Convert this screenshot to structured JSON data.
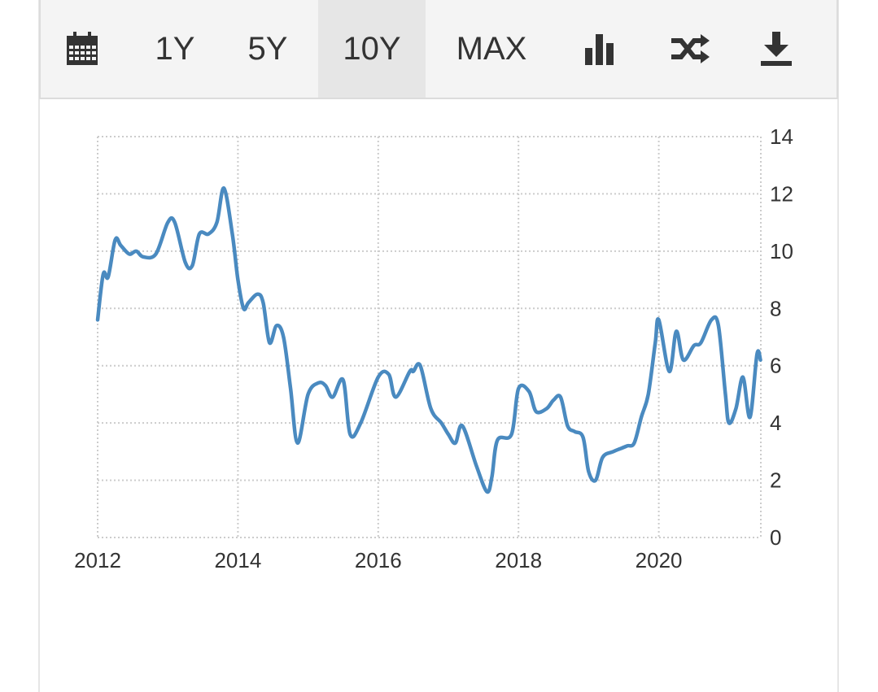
{
  "toolbar": {
    "calendar_icon": "calendar-icon",
    "range_1y": "1Y",
    "range_5y": "5Y",
    "range_10y": "10Y",
    "range_max": "MAX",
    "active_range": "10Y",
    "chart_type_icon": "bar-chart-icon",
    "compare_icon": "shuffle-icon",
    "download_icon": "download-icon"
  },
  "colors": {
    "line": "#4a8ac0",
    "grid": "#cccccc",
    "toolbar_bg": "#f4f4f4",
    "active_bg": "#e6e6e6",
    "text": "#333333"
  },
  "chart_data": {
    "type": "line",
    "title": "",
    "xlabel": "",
    "ylabel": "",
    "x_ticks": [
      "2012",
      "2014",
      "2016",
      "2018",
      "2020"
    ],
    "y_ticks": [
      "0",
      "2",
      "4",
      "6",
      "8",
      "10",
      "12",
      "14"
    ],
    "xlim": [
      2012,
      2021.5
    ],
    "ylim": [
      0,
      14
    ],
    "grid": true,
    "y_axis_side": "right",
    "series": [
      {
        "x": [
          2012.0,
          2012.08,
          2012.15,
          2012.25,
          2012.33,
          2012.45,
          2012.55,
          2012.65,
          2012.83,
          2013.0,
          2013.1,
          2013.25,
          2013.35,
          2013.45,
          2013.58,
          2013.7,
          2013.8,
          2013.92,
          2014.0,
          2014.08,
          2014.15,
          2014.28,
          2014.36,
          2014.45,
          2014.55,
          2014.65,
          2014.75,
          2014.85,
          2015.0,
          2015.15,
          2015.25,
          2015.35,
          2015.5,
          2015.6,
          2015.75,
          2016.0,
          2016.15,
          2016.25,
          2016.45,
          2016.5,
          2016.6,
          2016.75,
          2016.9,
          2017.0,
          2017.1,
          2017.2,
          2017.4,
          2017.55,
          2017.62,
          2017.7,
          2017.9,
          2018.0,
          2018.15,
          2018.25,
          2018.4,
          2018.5,
          2018.6,
          2018.7,
          2018.8,
          2018.92,
          2019.0,
          2019.1,
          2019.2,
          2019.35,
          2019.45,
          2019.55,
          2019.65,
          2019.75,
          2019.85,
          2019.95,
          2020.0,
          2020.15,
          2020.25,
          2020.35,
          2020.5,
          2020.6,
          2020.75,
          2020.85,
          2020.95,
          2021.0,
          2021.1,
          2021.2,
          2021.3,
          2021.4,
          2021.45
        ],
        "y": [
          7.6,
          9.2,
          9.1,
          10.4,
          10.2,
          9.9,
          10.0,
          9.8,
          9.9,
          11.0,
          11.0,
          9.6,
          9.5,
          10.6,
          10.6,
          11.0,
          12.2,
          10.6,
          9.0,
          8.0,
          8.2,
          8.5,
          8.2,
          6.8,
          7.4,
          7.0,
          5.2,
          3.3,
          5.0,
          5.4,
          5.3,
          4.9,
          5.5,
          3.6,
          4.0,
          5.6,
          5.7,
          4.9,
          5.8,
          5.8,
          6.0,
          4.5,
          4.0,
          3.6,
          3.3,
          3.9,
          2.5,
          1.6,
          2.1,
          3.4,
          3.6,
          5.2,
          5.1,
          4.4,
          4.5,
          4.8,
          4.9,
          3.9,
          3.7,
          3.5,
          2.3,
          2.0,
          2.8,
          3.0,
          3.1,
          3.2,
          3.3,
          4.2,
          5.0,
          6.8,
          7.6,
          5.8,
          7.2,
          6.2,
          6.7,
          6.8,
          7.6,
          7.4,
          5.0,
          4.0,
          4.5,
          5.6,
          4.2,
          6.4,
          6.2
        ]
      }
    ]
  }
}
